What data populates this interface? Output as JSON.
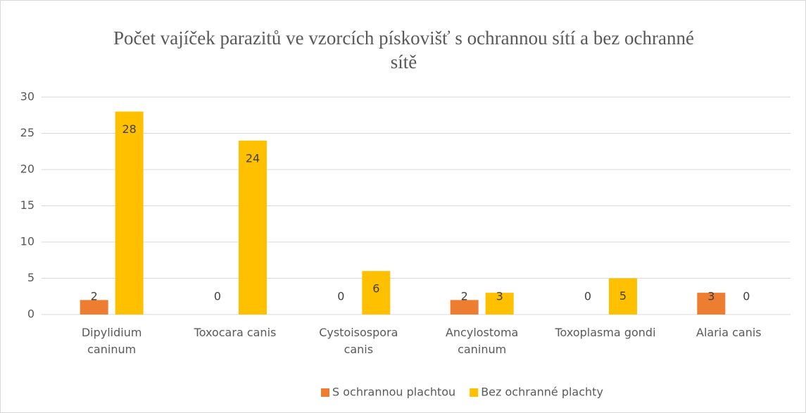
{
  "chart_data": {
    "type": "bar",
    "title": "Počet vajíček parazitů ve vzorcích pískovišť s ochrannou sítí a bez ochranné sítě",
    "categories": [
      "Dipylidium caninum",
      "Toxocara canis",
      "Cystoisospora canis",
      "Ancylostoma caninum",
      "Toxoplasma gondi",
      "Alaria canis"
    ],
    "series": [
      {
        "name": "S ochrannou plachtou",
        "color": "#ed7d31",
        "values": [
          2,
          0,
          0,
          2,
          0,
          3
        ]
      },
      {
        "name": "Bez ochranné plachty",
        "color": "#ffc000",
        "values": [
          28,
          24,
          6,
          3,
          5,
          0
        ]
      }
    ],
    "ylim": [
      0,
      30
    ],
    "yticks": [
      0,
      5,
      10,
      15,
      20,
      25,
      30
    ],
    "grid": true,
    "legend": "bottom"
  }
}
